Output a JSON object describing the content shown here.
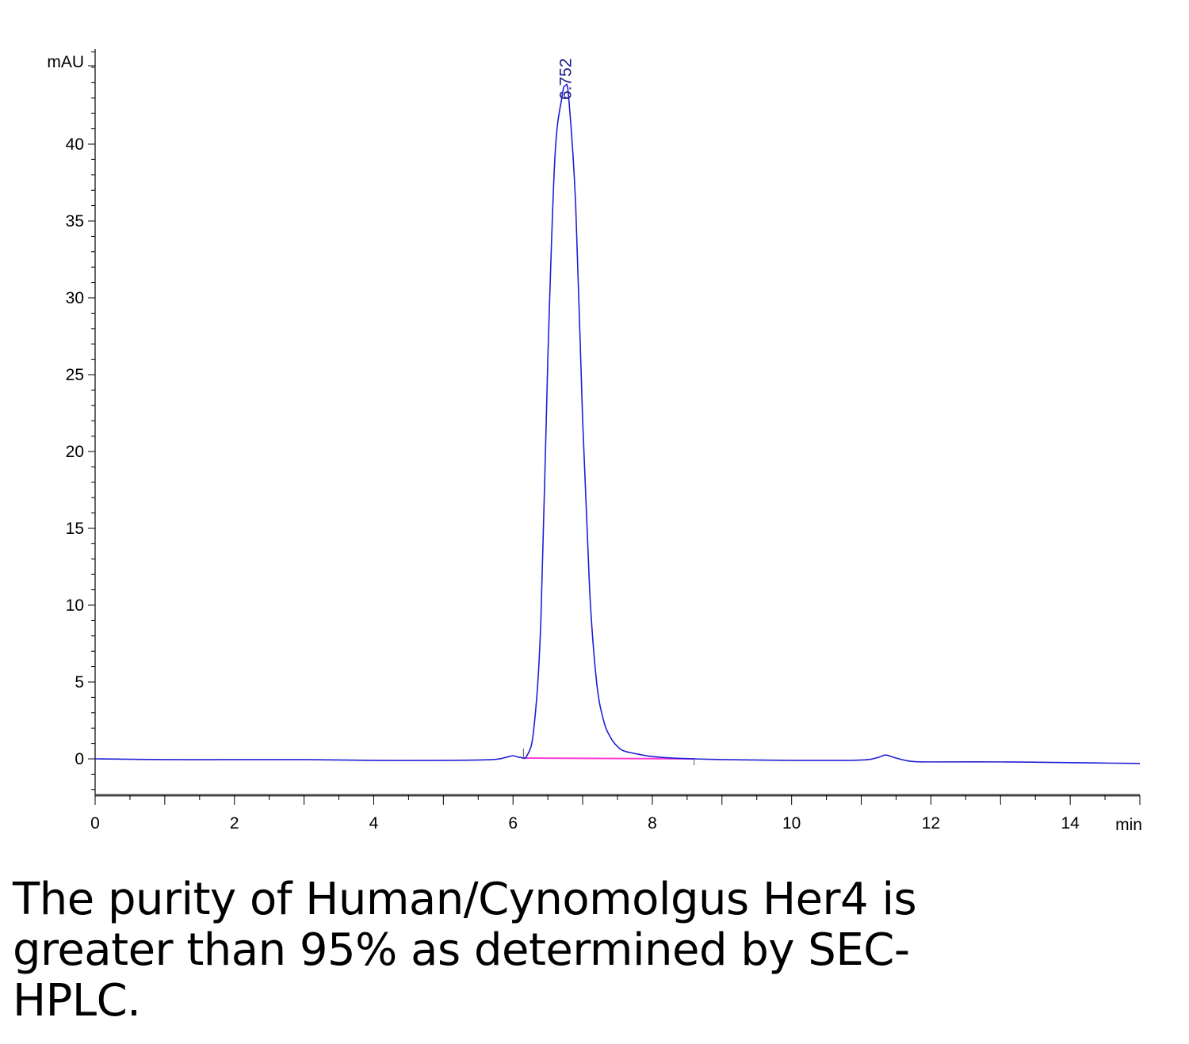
{
  "chart_data": {
    "type": "line",
    "ylabel": "mAU",
    "xlabel": "min",
    "xlim": [
      0,
      15
    ],
    "ylim": [
      -2.5,
      46
    ],
    "x_ticks": [
      0,
      2,
      4,
      6,
      8,
      10,
      12,
      14
    ],
    "y_ticks": [
      0,
      5,
      10,
      15,
      20,
      25,
      30,
      35,
      40
    ],
    "grid": false,
    "series": [
      {
        "color": "#1f1fd6",
        "x": [
          0,
          1,
          2,
          3,
          4,
          5,
          5.7,
          5.9,
          6.0,
          6.1,
          6.2,
          6.3,
          6.4,
          6.5,
          6.6,
          6.7,
          6.752,
          6.8,
          6.9,
          7.0,
          7.1,
          7.2,
          7.3,
          7.4,
          7.5,
          7.6,
          7.8,
          8.0,
          8.3,
          8.6,
          9.0,
          10.0,
          10.8,
          11.1,
          11.25,
          11.35,
          11.5,
          11.7,
          12.0,
          13.0,
          14.0,
          15.0
        ],
        "y": [
          0.0,
          -0.05,
          -0.05,
          -0.05,
          -0.1,
          -0.1,
          -0.05,
          0.1,
          0.2,
          0.1,
          0.2,
          2.0,
          9.0,
          26.0,
          39.0,
          43.0,
          43.8,
          43.0,
          36.0,
          22.0,
          11.0,
          5.0,
          2.5,
          1.4,
          0.8,
          0.5,
          0.3,
          0.15,
          0.05,
          0.0,
          -0.05,
          -0.1,
          -0.1,
          -0.05,
          0.1,
          0.25,
          0.05,
          -0.15,
          -0.2,
          -0.2,
          -0.25,
          -0.3
        ]
      }
    ],
    "baseline": {
      "color": "#ff3bd4",
      "x": [
        6.15,
        8.6
      ],
      "y": [
        0.05,
        0.0
      ]
    },
    "annotations": [
      {
        "text": "6.752",
        "x": 6.752,
        "y": 43.8
      }
    ]
  },
  "caption": "The purity of Human/Cynomolgus Her4 is greater than 95% as determined by SEC-HPLC."
}
